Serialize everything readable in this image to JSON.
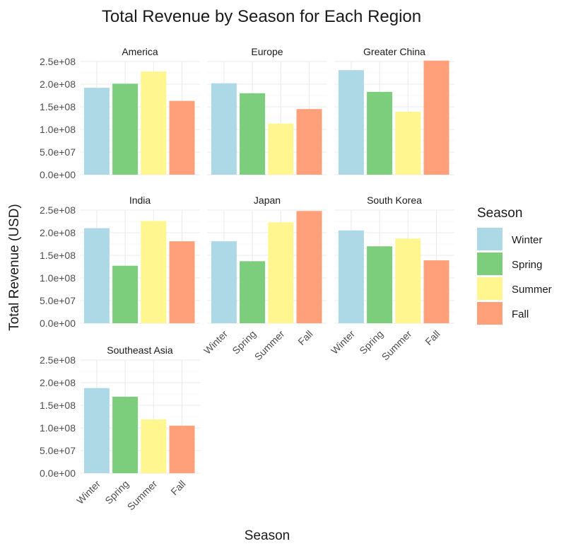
{
  "chart_data": {
    "type": "bar",
    "title": "Total Revenue by Season for Each Region",
    "xlabel": "Season",
    "ylabel": "Total Revenue (USD)",
    "ylim": [
      0,
      250000000
    ],
    "y_ticks": [
      0,
      50000000,
      100000000,
      150000000,
      200000000,
      250000000
    ],
    "y_tick_labels": [
      "0.0e+00",
      "5.0e+07",
      "1.0e+08",
      "1.5e+08",
      "2.0e+08",
      "2.5e+08"
    ],
    "categories": [
      "Winter",
      "Spring",
      "Summer",
      "Fall"
    ],
    "colors": {
      "Winter": "#add8e6",
      "Spring": "#7ccd7c",
      "Summer": "#fff68f",
      "Fall": "#ffa07a"
    },
    "grid": true,
    "legend": {
      "title": "Season",
      "position": "right",
      "entries": [
        "Winter",
        "Spring",
        "Summer",
        "Fall"
      ]
    },
    "panels": [
      {
        "name": "America",
        "values": [
          192000000,
          201000000,
          228000000,
          163000000
        ]
      },
      {
        "name": "Europe",
        "values": [
          202000000,
          180000000,
          113000000,
          145000000
        ]
      },
      {
        "name": "Greater China",
        "values": [
          231000000,
          183000000,
          139000000,
          252000000
        ]
      },
      {
        "name": "India",
        "values": [
          210000000,
          127000000,
          226000000,
          181000000
        ]
      },
      {
        "name": "Japan",
        "values": [
          181000000,
          137000000,
          223000000,
          248000000
        ]
      },
      {
        "name": "South Korea",
        "values": [
          205000000,
          170000000,
          187000000,
          139000000
        ]
      },
      {
        "name": "Southeast Asia",
        "values": [
          188000000,
          169000000,
          119000000,
          105000000
        ]
      }
    ]
  }
}
